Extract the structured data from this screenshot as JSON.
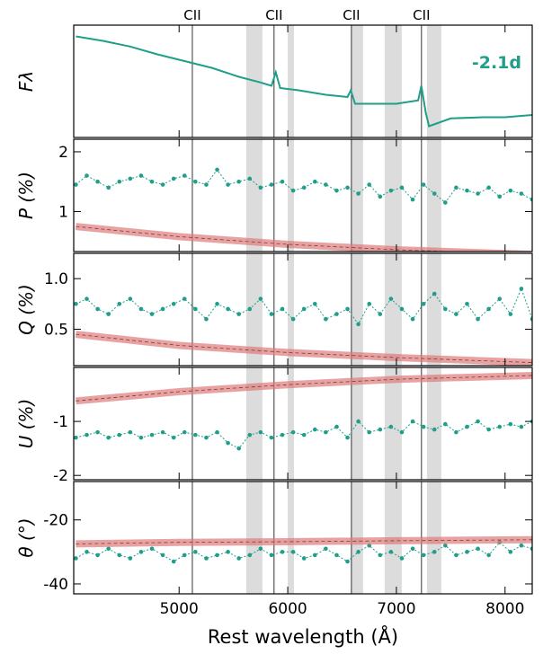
{
  "features": {
    "label": "CII",
    "lines": [
      5122,
      5874,
      6586,
      7231
    ],
    "regions": [
      [
        5618,
        5767
      ],
      [
        6000,
        6057
      ],
      [
        6586,
        6693
      ],
      [
        6892,
        7049
      ],
      [
        7281,
        7413
      ]
    ],
    "region_color": "#dcdcdc"
  },
  "chart_data": [
    {
      "type": "line",
      "y_label": "Fλ",
      "annotation": "-2.1d",
      "ylim": [
        0,
        1
      ],
      "series": [
        {
          "color": "#1f9e89",
          "x": [
            4050,
            4300,
            4550,
            4800,
            5050,
            5300,
            5550,
            5750,
            5850,
            5890,
            5930,
            6100,
            6350,
            6550,
            6580,
            6620,
            6800,
            7000,
            7200,
            7230,
            7270,
            7300,
            7500,
            7800,
            8000,
            8250
          ],
          "values": [
            0.9,
            0.86,
            0.81,
            0.74,
            0.68,
            0.62,
            0.54,
            0.49,
            0.46,
            0.58,
            0.44,
            0.42,
            0.38,
            0.36,
            0.42,
            0.3,
            0.3,
            0.3,
            0.33,
            0.46,
            0.22,
            0.1,
            0.17,
            0.18,
            0.18,
            0.2
          ]
        }
      ]
    },
    {
      "type": "scatter",
      "y_label": "P (%)",
      "ylim": [
        0.33,
        2.21
      ],
      "yticks": [
        1,
        2
      ],
      "series": [
        {
          "color": "#1f9e89",
          "x": [
            4050,
            4150,
            4250,
            4350,
            4450,
            4550,
            4650,
            4750,
            4850,
            4950,
            5050,
            5150,
            5250,
            5350,
            5450,
            5550,
            5650,
            5750,
            5850,
            5950,
            6050,
            6150,
            6250,
            6350,
            6450,
            6550,
            6650,
            6750,
            6850,
            6950,
            7050,
            7150,
            7250,
            7350,
            7450,
            7550,
            7650,
            7750,
            7850,
            7950,
            8050,
            8150,
            8250
          ],
          "values": [
            1.45,
            1.6,
            1.5,
            1.4,
            1.5,
            1.55,
            1.6,
            1.5,
            1.45,
            1.55,
            1.6,
            1.5,
            1.45,
            1.7,
            1.45,
            1.5,
            1.55,
            1.4,
            1.45,
            1.5,
            1.35,
            1.4,
            1.5,
            1.45,
            1.35,
            1.4,
            1.3,
            1.45,
            1.25,
            1.35,
            1.4,
            1.2,
            1.45,
            1.3,
            1.15,
            1.4,
            1.35,
            1.3,
            1.4,
            1.25,
            1.35,
            1.3,
            1.2
          ]
        },
        {
          "color": "#e07a7a",
          "x": [
            4050,
            5000,
            6000,
            7000,
            8250
          ],
          "values": [
            0.75,
            0.58,
            0.45,
            0.36,
            0.28
          ]
        }
      ]
    },
    {
      "type": "scatter",
      "y_label": "Q (%)",
      "ylim": [
        0.14,
        1.25
      ],
      "yticks": [
        0.5,
        {
          "value": 1,
          "label": "1.0"
        }
      ],
      "series": [
        {
          "color": "#1f9e89",
          "x": [
            4050,
            4150,
            4250,
            4350,
            4450,
            4550,
            4650,
            4750,
            4850,
            4950,
            5050,
            5150,
            5250,
            5350,
            5450,
            5550,
            5650,
            5750,
            5850,
            5950,
            6050,
            6150,
            6250,
            6350,
            6450,
            6550,
            6650,
            6750,
            6850,
            6950,
            7050,
            7150,
            7250,
            7350,
            7450,
            7550,
            7650,
            7750,
            7850,
            7950,
            8050,
            8150,
            8250
          ],
          "values": [
            0.75,
            0.8,
            0.7,
            0.65,
            0.75,
            0.8,
            0.7,
            0.65,
            0.7,
            0.75,
            0.8,
            0.7,
            0.6,
            0.75,
            0.7,
            0.65,
            0.7,
            0.8,
            0.65,
            0.7,
            0.6,
            0.7,
            0.75,
            0.6,
            0.65,
            0.7,
            0.55,
            0.75,
            0.65,
            0.8,
            0.7,
            0.6,
            0.75,
            0.85,
            0.7,
            0.65,
            0.75,
            0.6,
            0.7,
            0.8,
            0.65,
            0.9,
            0.6
          ]
        },
        {
          "color": "#e07a7a",
          "x": [
            4050,
            5000,
            6000,
            7000,
            8250
          ],
          "values": [
            0.45,
            0.34,
            0.27,
            0.22,
            0.17
          ]
        }
      ]
    },
    {
      "type": "scatter",
      "y_label": "U (%)",
      "ylim": [
        -2.08,
        0
      ],
      "yticks": [
        -1,
        -2
      ],
      "series": [
        {
          "color": "#1f9e89",
          "x": [
            4050,
            4150,
            4250,
            4350,
            4450,
            4550,
            4650,
            4750,
            4850,
            4950,
            5050,
            5150,
            5250,
            5350,
            5450,
            5550,
            5650,
            5750,
            5850,
            5950,
            6050,
            6150,
            6250,
            6350,
            6450,
            6550,
            6650,
            6750,
            6850,
            6950,
            7050,
            7150,
            7250,
            7350,
            7450,
            7550,
            7650,
            7750,
            7850,
            7950,
            8050,
            8150,
            8250
          ],
          "values": [
            -1.3,
            -1.25,
            -1.2,
            -1.3,
            -1.25,
            -1.2,
            -1.3,
            -1.25,
            -1.2,
            -1.3,
            -1.2,
            -1.25,
            -1.3,
            -1.2,
            -1.4,
            -1.5,
            -1.25,
            -1.2,
            -1.3,
            -1.25,
            -1.2,
            -1.25,
            -1.15,
            -1.2,
            -1.1,
            -1.3,
            -1.0,
            -1.2,
            -1.15,
            -1.1,
            -1.2,
            -1.0,
            -1.1,
            -1.15,
            -1.05,
            -1.2,
            -1.1,
            -1.0,
            -1.15,
            -1.1,
            -1.05,
            -1.1,
            -1.0
          ]
        },
        {
          "color": "#e07a7a",
          "x": [
            4050,
            5000,
            6000,
            7000,
            8250
          ],
          "values": [
            -0.62,
            -0.45,
            -0.32,
            -0.22,
            -0.15
          ]
        }
      ]
    },
    {
      "type": "scatter",
      "y_label": "θ (°)",
      "ylim": [
        -43.1,
        -8
      ],
      "yticks": [
        -20,
        -40
      ],
      "x_label": "Rest wavelength (Å)",
      "xlim": [
        4030,
        8250
      ],
      "xticks": [
        5000,
        6000,
        7000,
        8000
      ],
      "series": [
        {
          "color": "#1f9e89",
          "x": [
            4050,
            4150,
            4250,
            4350,
            4450,
            4550,
            4650,
            4750,
            4850,
            4950,
            5050,
            5150,
            5250,
            5350,
            5450,
            5550,
            5650,
            5750,
            5850,
            5950,
            6050,
            6150,
            6250,
            6350,
            6450,
            6550,
            6650,
            6750,
            6850,
            6950,
            7050,
            7150,
            7250,
            7350,
            7450,
            7550,
            7650,
            7750,
            7850,
            7950,
            8050,
            8150,
            8250
          ],
          "values": [
            -32,
            -30,
            -31,
            -29,
            -31,
            -32,
            -30,
            -29,
            -31,
            -33,
            -31,
            -30,
            -32,
            -31,
            -30,
            -32,
            -31,
            -29,
            -31,
            -30,
            -30,
            -32,
            -31,
            -29,
            -31,
            -33,
            -30,
            -28,
            -31,
            -30,
            -32,
            -29,
            -31,
            -30,
            -28,
            -31,
            -30,
            -29,
            -31,
            -27,
            -30,
            -28,
            -29
          ]
        },
        {
          "color": "#e07a7a",
          "x": [
            4050,
            5000,
            6000,
            7000,
            8250
          ],
          "values": [
            -27.5,
            -27,
            -26.8,
            -26.5,
            -26.2
          ]
        }
      ]
    }
  ]
}
